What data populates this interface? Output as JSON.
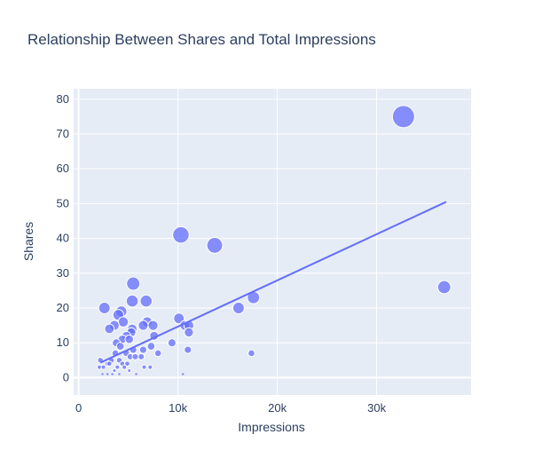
{
  "chart_data": {
    "type": "scatter",
    "title": "Relationship Between Shares and Total Impressions",
    "xlabel": "Impressions",
    "ylabel": "Shares",
    "xlim": [
      -500,
      39500
    ],
    "ylim": [
      -5,
      83
    ],
    "x_ticks": [
      {
        "value": 0,
        "label": "0"
      },
      {
        "value": 10000,
        "label": "10k"
      },
      {
        "value": 20000,
        "label": "20k"
      },
      {
        "value": 30000,
        "label": "30k"
      }
    ],
    "y_ticks": [
      {
        "value": 0,
        "label": "0"
      },
      {
        "value": 10,
        "label": "10"
      },
      {
        "value": 20,
        "label": "20"
      },
      {
        "value": 30,
        "label": "30"
      },
      {
        "value": 40,
        "label": "40"
      },
      {
        "value": 50,
        "label": "50"
      },
      {
        "value": 60,
        "label": "60"
      },
      {
        "value": 70,
        "label": "70"
      },
      {
        "value": 80,
        "label": "80"
      }
    ],
    "grid": true,
    "marker_color": "#636efa",
    "points": [
      {
        "x": 32700,
        "y": 75
      },
      {
        "x": 10300,
        "y": 41
      },
      {
        "x": 13700,
        "y": 38
      },
      {
        "x": 5500,
        "y": 27
      },
      {
        "x": 36800,
        "y": 26
      },
      {
        "x": 17600,
        "y": 23
      },
      {
        "x": 5400,
        "y": 22
      },
      {
        "x": 6800,
        "y": 22
      },
      {
        "x": 2600,
        "y": 20
      },
      {
        "x": 16100,
        "y": 20
      },
      {
        "x": 4300,
        "y": 19
      },
      {
        "x": 4000,
        "y": 18
      },
      {
        "x": 10100,
        "y": 17
      },
      {
        "x": 4500,
        "y": 16
      },
      {
        "x": 6900,
        "y": 16
      },
      {
        "x": 3600,
        "y": 15
      },
      {
        "x": 6500,
        "y": 15
      },
      {
        "x": 7500,
        "y": 15
      },
      {
        "x": 10700,
        "y": 15
      },
      {
        "x": 11100,
        "y": 15
      },
      {
        "x": 3100,
        "y": 14
      },
      {
        "x": 5400,
        "y": 14
      },
      {
        "x": 5300,
        "y": 13
      },
      {
        "x": 11100,
        "y": 13
      },
      {
        "x": 4800,
        "y": 12
      },
      {
        "x": 7600,
        "y": 12
      },
      {
        "x": 4400,
        "y": 11
      },
      {
        "x": 5100,
        "y": 11
      },
      {
        "x": 3800,
        "y": 10
      },
      {
        "x": 9400,
        "y": 10
      },
      {
        "x": 4200,
        "y": 9
      },
      {
        "x": 7300,
        "y": 9
      },
      {
        "x": 5500,
        "y": 8
      },
      {
        "x": 6500,
        "y": 8
      },
      {
        "x": 11000,
        "y": 8
      },
      {
        "x": 3700,
        "y": 7
      },
      {
        "x": 4800,
        "y": 7
      },
      {
        "x": 8000,
        "y": 7
      },
      {
        "x": 17400,
        "y": 7
      },
      {
        "x": 3300,
        "y": 5
      },
      {
        "x": 4100,
        "y": 5
      },
      {
        "x": 5200,
        "y": 6
      },
      {
        "x": 6300,
        "y": 6
      },
      {
        "x": 5700,
        "y": 6
      },
      {
        "x": 2200,
        "y": 5
      },
      {
        "x": 4400,
        "y": 4
      },
      {
        "x": 2900,
        "y": 4
      },
      {
        "x": 3100,
        "y": 4
      },
      {
        "x": 4900,
        "y": 4
      },
      {
        "x": 2100,
        "y": 3
      },
      {
        "x": 2500,
        "y": 3
      },
      {
        "x": 3900,
        "y": 3
      },
      {
        "x": 4600,
        "y": 3
      },
      {
        "x": 6600,
        "y": 3
      },
      {
        "x": 7200,
        "y": 3
      },
      {
        "x": 3600,
        "y": 2
      },
      {
        "x": 5100,
        "y": 2
      },
      {
        "x": 2900,
        "y": 1
      },
      {
        "x": 3400,
        "y": 1
      },
      {
        "x": 4100,
        "y": 1
      },
      {
        "x": 2400,
        "y": 1
      },
      {
        "x": 5800,
        "y": 1
      },
      {
        "x": 10500,
        "y": 1
      }
    ],
    "trendline": {
      "x": [
        2200,
        37000
      ],
      "y": [
        4.3,
        50.5
      ]
    }
  }
}
